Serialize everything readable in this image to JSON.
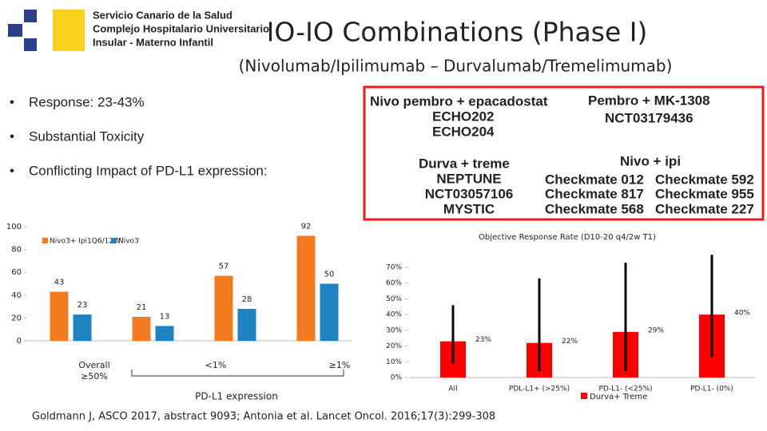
{
  "header": {
    "logo_text": [
      "Servicio Canario de la Salud",
      "Complejo Hospitalario Universitario",
      "Insular - Materno Infantil"
    ],
    "title": "IO-IO Combinations (Phase I)",
    "subtitle": "(Nivolumab/Ipilimumab – Durvalumab/Tremelimumab)"
  },
  "bullets": [
    "Response: 23-43%",
    "Substantial Toxicity",
    "Conflicting Impact of PD-L1 expression:"
  ],
  "trials": [
    {
      "name": "Nivo pembro + epacadostat",
      "items": [
        "ECHO202",
        "ECHO204"
      ]
    },
    {
      "name": "Pembro + MK-1308",
      "items": [
        "NCT03179436"
      ]
    },
    {
      "name": "Durva + treme",
      "items": [
        "NEPTUNE",
        "NCT03057106",
        "MYSTIC"
      ]
    },
    {
      "name": "Nivo + ipi",
      "items": [
        "Checkmate 012",
        "Checkmate 817",
        "Checkmate 568",
        "Checkmate 592",
        "Checkmate 955",
        "Checkmate 227"
      ]
    }
  ],
  "chart_data": [
    {
      "type": "bar",
      "categories": [
        null,
        null,
        null,
        null
      ],
      "x_annotations": [
        "Overall",
        "≥50%",
        "<1%",
        "≥1%"
      ],
      "xlabel": "PD-L1 expression",
      "series": [
        {
          "name": "Nivo3+ Ipi1Q6/12W",
          "color": "#f47b20",
          "values": [
            43,
            21,
            57,
            92
          ]
        },
        {
          "name": "Nivo3",
          "color": "#1f83c1",
          "values": [
            23,
            13,
            28,
            50
          ]
        }
      ],
      "ylim": [
        0,
        100
      ],
      "yticks": [
        0,
        20,
        40,
        60,
        80,
        100
      ]
    },
    {
      "type": "bar",
      "title": "Objective Response Rate (D10-20 q4/2w T1)",
      "categories": [
        "All",
        "PDL-L1+ (>25%)",
        "PD-L1- (<25%)",
        "PD-L1- (0%)"
      ],
      "series": [
        {
          "name": "Durva+ Treme",
          "color": "#ff0000",
          "values": [
            23,
            22,
            29,
            40
          ],
          "value_labels": [
            "23%",
            "22%",
            "29%",
            "40%"
          ],
          "ci_low": [
            9,
            4,
            4,
            13
          ],
          "ci_high": [
            46,
            63,
            73,
            78
          ]
        }
      ],
      "ylim": [
        0,
        70
      ],
      "yticks": [
        {
          "value": 0,
          "label": "0%"
        },
        {
          "value": 10,
          "label": "10%"
        },
        {
          "value": 20,
          "label": "20%"
        },
        {
          "value": 30,
          "label": "30%"
        },
        {
          "value": 40,
          "label": "40%"
        },
        {
          "value": 50,
          "label": "50%"
        },
        {
          "value": 60,
          "label": "60%"
        },
        {
          "value": 70,
          "label": "70%"
        }
      ]
    }
  ],
  "footer": "Goldmann J, ASCO 2017, abstract 9093; Antonia et al. Lancet Oncol. 2016;17(3):299-308"
}
